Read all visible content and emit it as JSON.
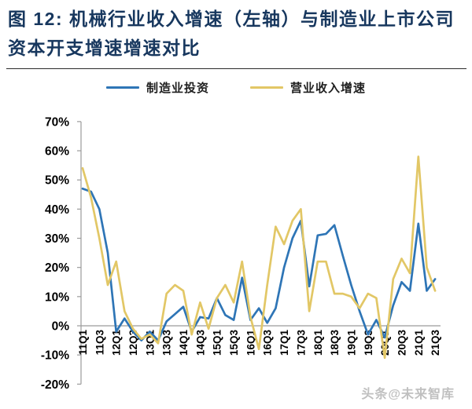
{
  "header": {
    "title_line1": "图 12: 机械行业收入增速（左轴）与制造业上市公司",
    "title_line2": "资本开支增速增速对比"
  },
  "legend": [
    {
      "label": "制造业投资",
      "color": "#2E75B6"
    },
    {
      "label": "营业收入增速",
      "color": "#E2C766"
    }
  ],
  "watermark": "头条@未来智库",
  "chart_data": {
    "type": "line",
    "title": "机械行业收入增速（左轴）与制造业上市公司资本开支增速增速对比",
    "x": [
      "11Q1",
      "11Q2",
      "11Q3",
      "11Q4",
      "12Q1",
      "12Q2",
      "12Q3",
      "12Q4",
      "13Q1",
      "13Q2",
      "13Q3",
      "13Q4",
      "14Q1",
      "14Q2",
      "14Q3",
      "14Q4",
      "15Q1",
      "15Q2",
      "15Q3",
      "15Q4",
      "16Q1",
      "16Q2",
      "16Q3",
      "16Q4",
      "17Q1",
      "17Q2",
      "17Q3",
      "17Q4",
      "18Q1",
      "18Q2",
      "18Q3",
      "18Q4",
      "19Q1",
      "19Q2",
      "19Q3",
      "19Q4",
      "20Q1",
      "20Q2",
      "20Q3",
      "20Q4",
      "21Q1",
      "21Q2",
      "21Q3"
    ],
    "x_tick_every": 2,
    "x_tick_labels_shown": [
      "11Q1",
      "11Q3",
      "12Q1",
      "12Q3",
      "13Q1",
      "13Q3",
      "14Q1",
      "14Q3",
      "15Q1",
      "15Q3",
      "16Q1",
      "16Q3",
      "17Q1",
      "17Q3",
      "18Q1",
      "18Q3",
      "19Q1",
      "19Q3",
      "20Q1",
      "20Q3",
      "21Q1",
      "21Q3"
    ],
    "ylim": [
      -20,
      70
    ],
    "ytick_step": 10,
    "ytick_suffix": "%",
    "y_tick_labels": [
      "70%",
      "60%",
      "50%",
      "40%",
      "30%",
      "20%",
      "10%",
      "0%",
      "-10%",
      "-20%"
    ],
    "grid": false,
    "legend_position": "top",
    "axis_color": "#9b9b9b",
    "series": [
      {
        "name": "制造业投资",
        "color": "#2E75B6",
        "values": [
          47,
          46,
          40,
          25,
          -2,
          2.5,
          -2,
          -5,
          -2,
          -5,
          1.5,
          4,
          6.5,
          -2,
          3,
          2.5,
          9.5,
          3.7,
          2,
          16.5,
          2,
          6,
          1,
          6,
          20,
          30,
          36,
          13.5,
          31,
          31.5,
          34.5,
          24,
          14,
          5,
          -3,
          2,
          -4,
          7,
          15,
          12,
          35,
          12,
          16
        ]
      },
      {
        "name": "营业收入增速",
        "color": "#E2C766",
        "values": [
          54,
          44,
          30,
          14,
          22,
          5,
          -1,
          -4.5,
          -3,
          -6,
          11,
          14,
          12,
          -3,
          8,
          -1,
          9.5,
          14,
          8,
          22,
          3,
          -8,
          14,
          34,
          28,
          36,
          40,
          5,
          22,
          22,
          11,
          11,
          10,
          6,
          11,
          9.5,
          -11,
          16,
          23,
          18,
          58,
          20,
          12
        ]
      }
    ]
  }
}
